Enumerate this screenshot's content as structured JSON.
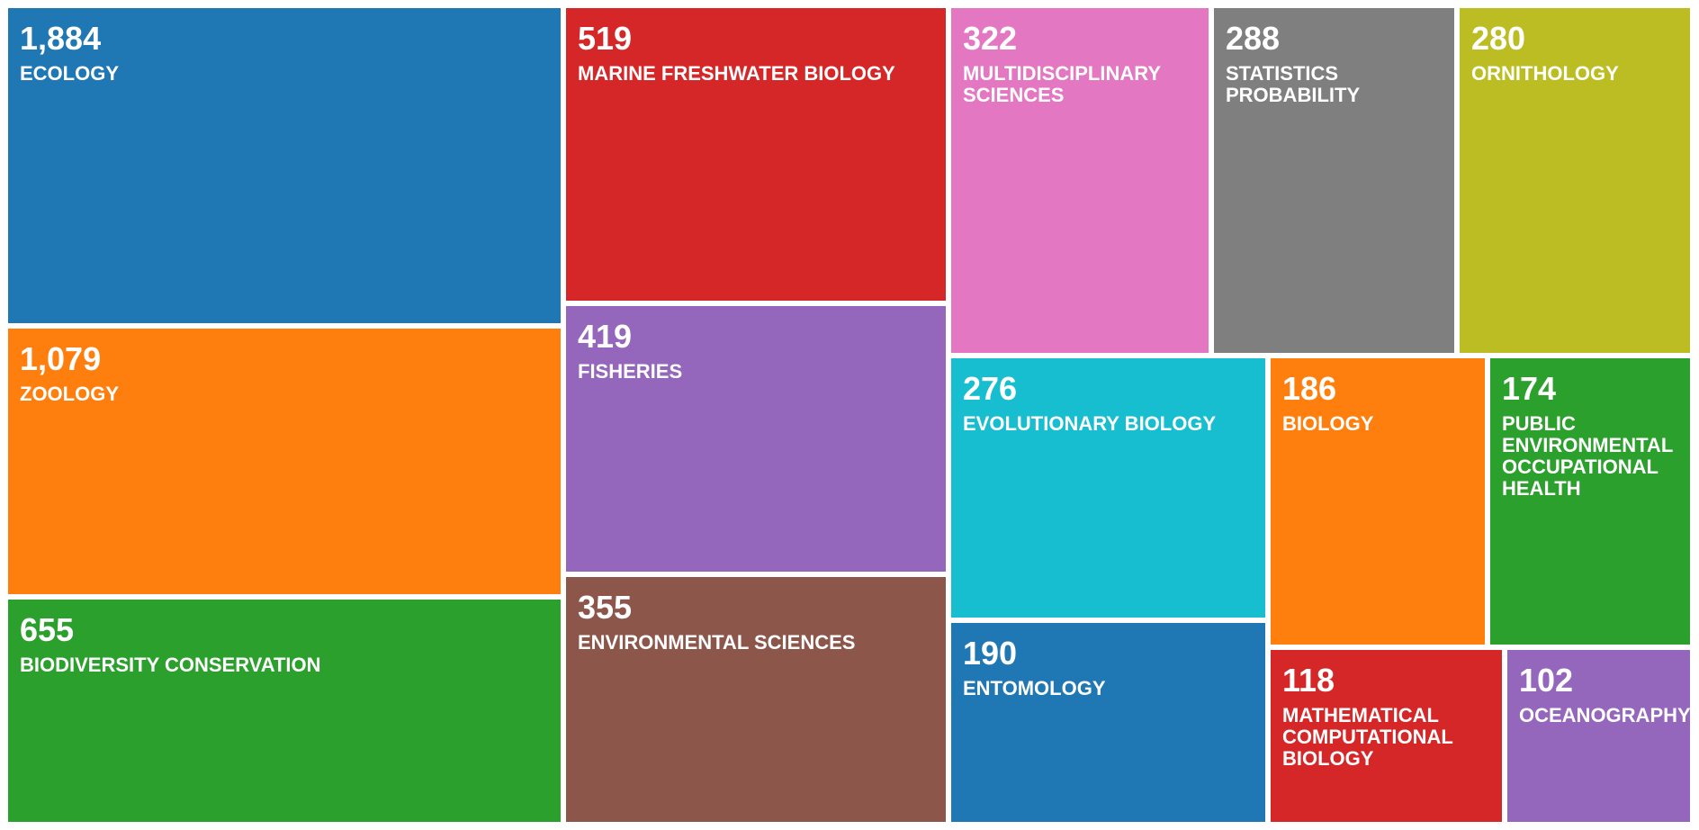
{
  "chart_data": {
    "type": "treemap",
    "title": "",
    "items": [
      {
        "value": 1884,
        "value_label": "1,884",
        "label": "ECOLOGY",
        "color": "#1f77b4"
      },
      {
        "value": 1079,
        "value_label": "1,079",
        "label": "ZOOLOGY",
        "color": "#ff7f0e"
      },
      {
        "value": 655,
        "value_label": "655",
        "label": "BIODIVERSITY CONSERVATION",
        "color": "#2ca02c"
      },
      {
        "value": 519,
        "value_label": "519",
        "label": "MARINE FRESHWATER BIOLOGY",
        "color": "#d62728"
      },
      {
        "value": 419,
        "value_label": "419",
        "label": "FISHERIES",
        "color": "#9467bd"
      },
      {
        "value": 355,
        "value_label": "355",
        "label": "ENVIRONMENTAL SCIENCES",
        "color": "#8c564b"
      },
      {
        "value": 322,
        "value_label": "322",
        "label": "MULTIDISCIPLINARY SCIENCES",
        "color": "#e377c2"
      },
      {
        "value": 288,
        "value_label": "288",
        "label": "STATISTICS PROBABILITY",
        "color": "#7f7f7f"
      },
      {
        "value": 280,
        "value_label": "280",
        "label": "ORNITHOLOGY",
        "color": "#bcbd22"
      },
      {
        "value": 276,
        "value_label": "276",
        "label": "EVOLUTIONARY BIOLOGY",
        "color": "#17becf"
      },
      {
        "value": 190,
        "value_label": "190",
        "label": "ENTOMOLOGY",
        "color": "#1f77b4"
      },
      {
        "value": 186,
        "value_label": "186",
        "label": "BIOLOGY",
        "color": "#ff7f0e"
      },
      {
        "value": 174,
        "value_label": "174",
        "label": "PUBLIC ENVIRONMENTAL OCCUPATIONAL HEALTH",
        "color": "#2ca02c"
      },
      {
        "value": 118,
        "value_label": "118",
        "label": "MATHEMATICAL COMPUTATIONAL BIOLOGY",
        "color": "#d62728"
      },
      {
        "value": 102,
        "value_label": "102",
        "label": "OCEANOGRAPHY",
        "color": "#9467bd"
      }
    ]
  }
}
